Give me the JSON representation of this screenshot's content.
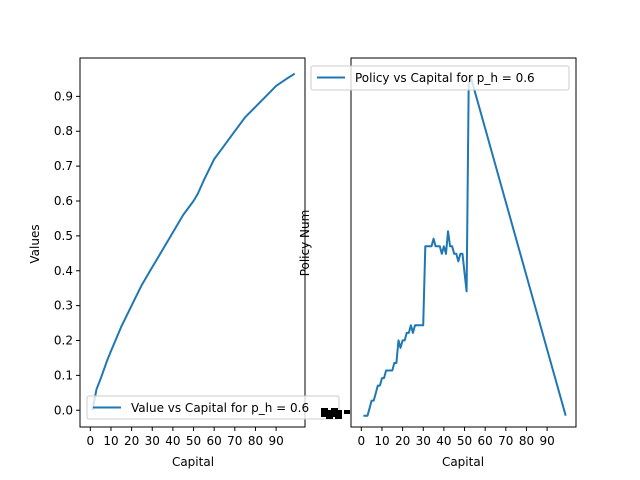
{
  "chart_data": [
    {
      "type": "line",
      "xlabel": "Capital",
      "ylabel": "Values",
      "xlim": [
        -5,
        104
      ],
      "ylim": [
        -0.048,
        1.01
      ],
      "xticks": [
        0,
        10,
        20,
        30,
        40,
        50,
        60,
        70,
        80,
        90
      ],
      "yticks": [
        0.0,
        0.1,
        0.2,
        0.3,
        0.4,
        0.5,
        0.6,
        0.7,
        0.8,
        0.9
      ],
      "ytick_labels": [
        "0.0",
        "0.1",
        "0.2",
        "0.3",
        "0.4",
        "0.5",
        "0.6",
        "0.7",
        "0.8",
        "0.9"
      ],
      "legend": {
        "placement": "lower-right",
        "label": "Value vs Capital for p_h = 0.6"
      },
      "line_color": "#1f77b4",
      "series": [
        {
          "name": "Value vs Capital for p_h = 0.6",
          "x": [
            1,
            3,
            5,
            8,
            10,
            15,
            20,
            25,
            30,
            35,
            40,
            45,
            50,
            52,
            55,
            60,
            65,
            70,
            75,
            80,
            85,
            90,
            95,
            99
          ],
          "y": [
            0.0,
            0.06,
            0.09,
            0.14,
            0.17,
            0.24,
            0.3,
            0.36,
            0.41,
            0.46,
            0.51,
            0.56,
            0.6,
            0.62,
            0.66,
            0.72,
            0.76,
            0.8,
            0.84,
            0.87,
            0.9,
            0.93,
            0.95,
            0.965
          ]
        }
      ]
    },
    {
      "type": "line",
      "xlabel": "Capital",
      "ylabel": "Policy Num",
      "xlim": [
        -5,
        104
      ],
      "ylim": [
        -0.03,
        0.95
      ],
      "xticks": [
        0,
        10,
        20,
        30,
        40,
        50,
        60,
        70,
        80,
        90
      ],
      "legend": {
        "placement": "top-right",
        "label": "Policy vs Capital for p_h = 0.6"
      },
      "line_color": "#1f77b4",
      "series": [
        {
          "name": "Policy vs Capital for p_h = 0.6",
          "x": [
            1,
            2,
            3,
            4,
            5,
            6,
            7,
            8,
            9,
            10,
            11,
            12,
            13,
            14,
            15,
            16,
            17,
            18,
            19,
            20,
            21,
            22,
            23,
            24,
            25,
            26,
            27,
            28,
            29,
            30,
            31,
            32,
            33,
            34,
            35,
            36,
            37,
            38,
            39,
            40,
            41,
            42,
            43,
            44,
            45,
            46,
            47,
            48,
            49,
            50,
            51,
            52,
            53,
            99
          ],
          "y": [
            0.0,
            0.0,
            0.0,
            0.02,
            0.04,
            0.04,
            0.06,
            0.08,
            0.08,
            0.1,
            0.1,
            0.12,
            0.12,
            0.12,
            0.12,
            0.14,
            0.14,
            0.2,
            0.18,
            0.2,
            0.2,
            0.22,
            0.22,
            0.24,
            0.22,
            0.24,
            0.24,
            0.24,
            0.24,
            0.24,
            0.45,
            0.45,
            0.45,
            0.45,
            0.47,
            0.45,
            0.45,
            0.45,
            0.43,
            0.45,
            0.43,
            0.49,
            0.45,
            0.45,
            0.43,
            0.43,
            0.41,
            0.43,
            0.43,
            0.38,
            0.33,
            0.88,
            0.9,
            0.0
          ]
        }
      ]
    }
  ]
}
